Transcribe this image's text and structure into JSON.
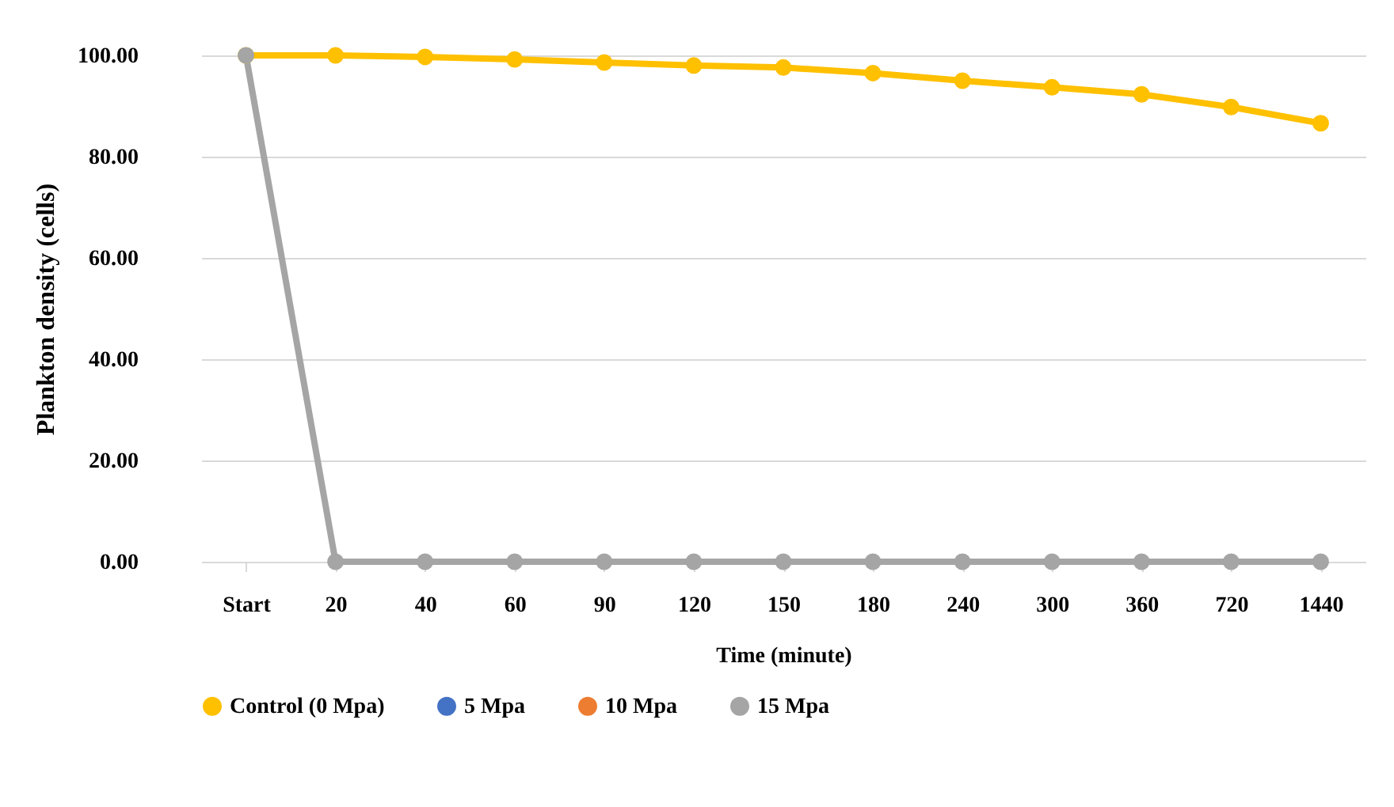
{
  "chart_data": {
    "type": "line",
    "xlabel": "Time (minute)",
    "ylabel": "Plankton density (cells)",
    "categories": [
      "Start",
      "20",
      "40",
      "60",
      "90",
      "120",
      "150",
      "180",
      "240",
      "300",
      "360",
      "720",
      "1440"
    ],
    "series": [
      {
        "name": "Control (0 Mpa)",
        "color": "#ffc000",
        "values": [
          100,
          100,
          99.7,
          99.2,
          98.6,
          98.0,
          97.6,
          96.5,
          95.0,
          93.7,
          92.3,
          89.8,
          86.6
        ]
      },
      {
        "name": "5 Mpa",
        "color": "#4472c4",
        "values": [
          null,
          null,
          null,
          null,
          null,
          null,
          null,
          null,
          null,
          null,
          null,
          null,
          null
        ]
      },
      {
        "name": "10 Mpa",
        "color": "#ed7d31",
        "values": [
          null,
          null,
          null,
          null,
          null,
          null,
          null,
          null,
          null,
          null,
          null,
          null,
          null
        ]
      },
      {
        "name": "15 Mpa",
        "color": "#a5a5a5",
        "values": [
          100,
          0,
          0,
          0,
          0,
          0,
          0,
          0,
          0,
          0,
          0,
          0,
          0
        ]
      }
    ],
    "ylim": [
      0,
      100
    ],
    "yticks": [
      {
        "value": 0,
        "label": "0.00"
      },
      {
        "value": 20,
        "label": "20.00"
      },
      {
        "value": 40,
        "label": "40.00"
      },
      {
        "value": 60,
        "label": "60.00"
      },
      {
        "value": 80,
        "label": "80.00"
      },
      {
        "value": 100,
        "label": "100.00"
      }
    ],
    "grid": "y",
    "legend": "bottom",
    "marker": "circle",
    "line_style": "solid"
  }
}
